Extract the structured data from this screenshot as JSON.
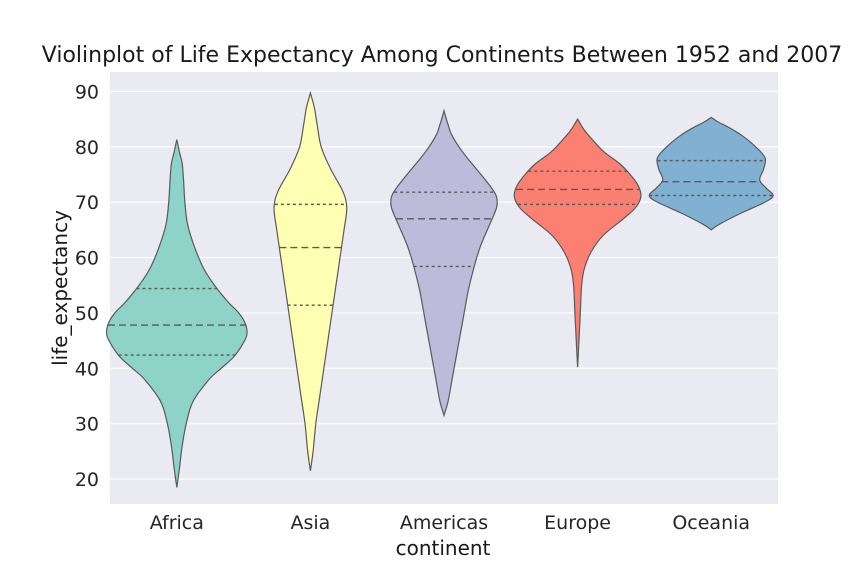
{
  "chart_data": {
    "type": "violin",
    "title": "Violinplot of Life Expectancy Among Continents Between 1952 and 2007",
    "xlabel": "continent",
    "ylabel": "life_expectancy",
    "ylim": [
      15.5,
      93.5
    ],
    "yticks": [
      20,
      30,
      40,
      50,
      60,
      70,
      80,
      90
    ],
    "grid": true,
    "categories": [
      "Africa",
      "Asia",
      "Americas",
      "Europe",
      "Oceania"
    ],
    "colors": [
      "#8dd3c7",
      "#ffffb3",
      "#bebada",
      "#fb8072",
      "#80b1d3"
    ],
    "violins": [
      {
        "category": "Africa",
        "min": 18.5,
        "max": 81.3,
        "q1": 42.4,
        "median": 47.8,
        "q3": 54.4,
        "profile": [
          [
            18.5,
            0
          ],
          [
            22,
            0.02
          ],
          [
            26,
            0.04
          ],
          [
            30,
            0.07
          ],
          [
            34,
            0.12
          ],
          [
            38,
            0.24
          ],
          [
            40,
            0.33
          ],
          [
            42,
            0.42
          ],
          [
            44,
            0.48
          ],
          [
            46,
            0.52
          ],
          [
            48,
            0.51
          ],
          [
            50,
            0.46
          ],
          [
            52,
            0.38
          ],
          [
            55,
            0.28
          ],
          [
            58,
            0.2
          ],
          [
            62,
            0.13
          ],
          [
            66,
            0.08
          ],
          [
            70,
            0.06
          ],
          [
            74,
            0.05
          ],
          [
            77,
            0.04
          ],
          [
            79,
            0.02
          ],
          [
            81.3,
            0
          ]
        ]
      },
      {
        "category": "Asia",
        "min": 21.5,
        "max": 89.7,
        "q1": 51.4,
        "median": 61.8,
        "q3": 69.6,
        "profile": [
          [
            21.5,
            0
          ],
          [
            25,
            0.02
          ],
          [
            30,
            0.04
          ],
          [
            35,
            0.07
          ],
          [
            40,
            0.1
          ],
          [
            45,
            0.13
          ],
          [
            50,
            0.16
          ],
          [
            55,
            0.19
          ],
          [
            60,
            0.22
          ],
          [
            65,
            0.25
          ],
          [
            69,
            0.27
          ],
          [
            72,
            0.24
          ],
          [
            76,
            0.15
          ],
          [
            80,
            0.08
          ],
          [
            84,
            0.05
          ],
          [
            87,
            0.03
          ],
          [
            89.7,
            0
          ]
        ]
      },
      {
        "category": "Americas",
        "min": 31.5,
        "max": 86.5,
        "q1": 58.4,
        "median": 67.0,
        "q3": 71.8,
        "profile": [
          [
            31.5,
            0
          ],
          [
            34,
            0.03
          ],
          [
            38,
            0.06
          ],
          [
            42,
            0.09
          ],
          [
            46,
            0.12
          ],
          [
            50,
            0.15
          ],
          [
            54,
            0.18
          ],
          [
            58,
            0.22
          ],
          [
            62,
            0.27
          ],
          [
            66,
            0.34
          ],
          [
            69,
            0.39
          ],
          [
            71,
            0.39
          ],
          [
            73,
            0.34
          ],
          [
            76,
            0.24
          ],
          [
            79,
            0.14
          ],
          [
            82,
            0.06
          ],
          [
            84,
            0.03
          ],
          [
            86.5,
            0
          ]
        ]
      },
      {
        "category": "Europe",
        "min": 40.2,
        "max": 85.0,
        "q1": 69.6,
        "median": 72.3,
        "q3": 75.6,
        "profile": [
          [
            40.2,
            0
          ],
          [
            45,
            0.01
          ],
          [
            50,
            0.02
          ],
          [
            55,
            0.03
          ],
          [
            58,
            0.05
          ],
          [
            61,
            0.1
          ],
          [
            64,
            0.19
          ],
          [
            67,
            0.34
          ],
          [
            69,
            0.43
          ],
          [
            71,
            0.47
          ],
          [
            73,
            0.45
          ],
          [
            75,
            0.39
          ],
          [
            77,
            0.31
          ],
          [
            79,
            0.2
          ],
          [
            81,
            0.12
          ],
          [
            83,
            0.05
          ],
          [
            85,
            0
          ]
        ]
      },
      {
        "category": "Oceania",
        "min": 65.0,
        "max": 85.3,
        "q1": 71.2,
        "median": 73.7,
        "q3": 77.5,
        "profile": [
          [
            65,
            0
          ],
          [
            66,
            0.06
          ],
          [
            68,
            0.22
          ],
          [
            70,
            0.4
          ],
          [
            71.2,
            0.46
          ],
          [
            72.5,
            0.41
          ],
          [
            74,
            0.36
          ],
          [
            76,
            0.39
          ],
          [
            78,
            0.4
          ],
          [
            80,
            0.33
          ],
          [
            82,
            0.23
          ],
          [
            83.5,
            0.13
          ],
          [
            84.5,
            0.05
          ],
          [
            85.3,
            0
          ]
        ]
      }
    ]
  }
}
